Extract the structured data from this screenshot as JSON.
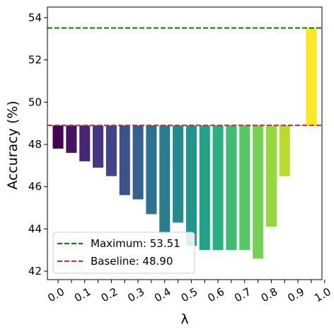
{
  "chart_data": {
    "type": "bar",
    "xlabel": "λ",
    "ylabel": "Accuracy (%)",
    "ylim": [
      41.6,
      54.5
    ],
    "yticks": [
      42,
      44,
      46,
      48,
      50,
      52,
      54
    ],
    "xtick_labels": [
      "0.0",
      "0.1",
      "0.2",
      "0.3",
      "0.4",
      "0.5",
      "0.6",
      "0.7",
      "0.8",
      "0.9",
      "1.0"
    ],
    "bar_base": 48.9,
    "categories": [
      "0.00",
      "0.05",
      "0.10",
      "0.15",
      "0.20",
      "0.25",
      "0.30",
      "0.35",
      "0.40",
      "0.45",
      "0.50",
      "0.55",
      "0.60",
      "0.65",
      "0.70",
      "0.75",
      "0.80",
      "0.85",
      "0.90",
      "0.95"
    ],
    "values": [
      47.8,
      47.6,
      47.2,
      46.9,
      46.5,
      45.6,
      45.4,
      44.7,
      43.8,
      44.3,
      43.2,
      43.0,
      43.0,
      43.0,
      43.0,
      42.6,
      44.1,
      46.5,
      48.9,
      53.51
    ],
    "colors": [
      "#440154",
      "#482173",
      "#433e85",
      "#3a548c",
      "#2d708e",
      "#25858e",
      "#1e9b8a",
      "#2ab07f",
      "#52c569",
      "#86d549",
      "#c2df23",
      "#fde725"
    ],
    "reference_lines": [
      {
        "label": "Maximum: 53.51",
        "value": 53.51,
        "color": "#008000"
      },
      {
        "label": "Baseline: 48.90",
        "value": 48.9,
        "color": "#d62728"
      }
    ],
    "legend_position": "lower-left",
    "grid": false
  }
}
